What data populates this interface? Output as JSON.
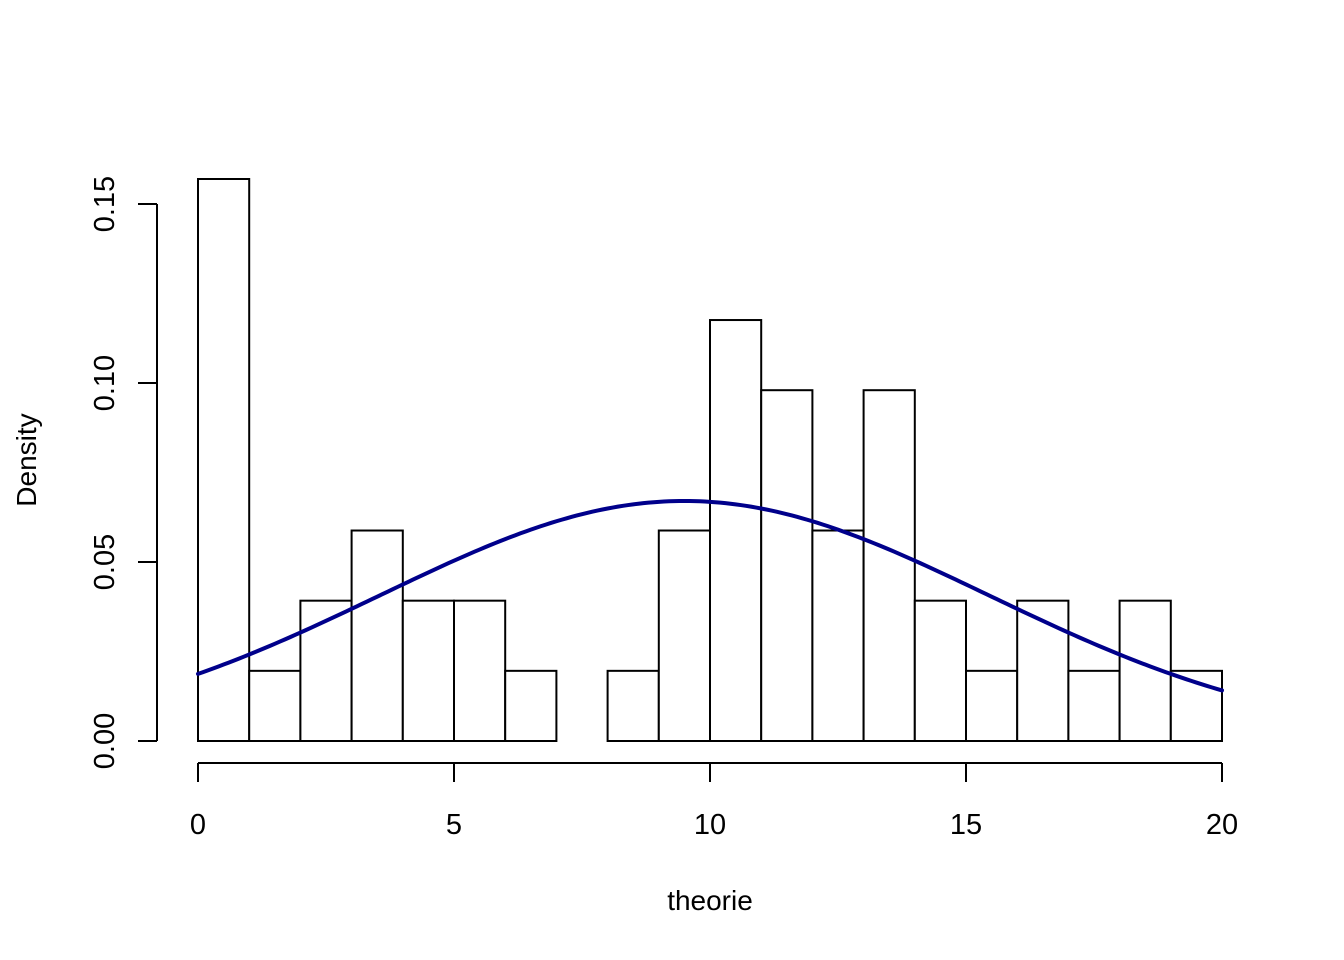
{
  "chart_data": {
    "type": "bar",
    "subtype": "histogram",
    "title": "",
    "xlabel": "theorie",
    "ylabel": "Density",
    "bin_edges": [
      0,
      1,
      2,
      3,
      4,
      5,
      6,
      7,
      8,
      9,
      10,
      11,
      12,
      13,
      14,
      15,
      16,
      17,
      18,
      19,
      20
    ],
    "values": [
      0.157,
      0.0196,
      0.0392,
      0.0588,
      0.0392,
      0.0392,
      0.0196,
      0,
      0.0196,
      0.0588,
      0.1176,
      0.098,
      0.0588,
      0.098,
      0.0392,
      0.0196,
      0.0392,
      0.0196,
      0.0392,
      0.0196
    ],
    "xlim": [
      0,
      20
    ],
    "ylim": [
      0,
      0.157
    ],
    "x_ticks": [
      0,
      5,
      10,
      15,
      20
    ],
    "x_tick_labels": [
      "0",
      "5",
      "10",
      "15",
      "20"
    ],
    "y_ticks": [
      0,
      0.05,
      0.1,
      0.15
    ],
    "y_tick_labels": [
      "0.00",
      "0.05",
      "0.10",
      "0.15"
    ],
    "grid": false,
    "density_curve": {
      "type": "line",
      "color": "#00008B",
      "distribution": "normal",
      "mean": 9.5,
      "sd": 5.95
    },
    "bar_fill": "#ffffff",
    "bar_stroke": "#000000"
  }
}
